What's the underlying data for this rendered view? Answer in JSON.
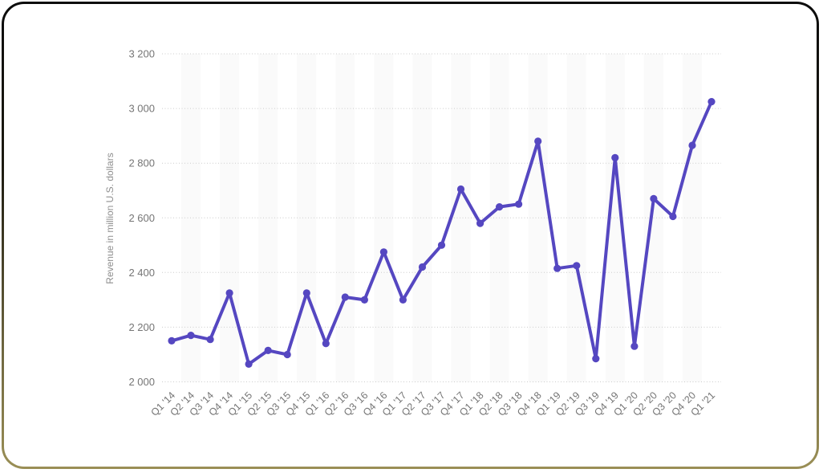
{
  "frame": {
    "background": "#ffffff",
    "border_gradient_top": "#0c0c0c",
    "border_gradient_bottom": "#9a8f56"
  },
  "chart_data": {
    "type": "line",
    "title": "",
    "xlabel": "",
    "ylabel": "Revenue in million U.S. dollars",
    "legend": "none",
    "grid": "horizontal-dotted",
    "plot_bands": "alternating-column-stripes",
    "ylim": [
      2000,
      3200
    ],
    "ytick_values": [
      2000,
      2200,
      2400,
      2600,
      2800,
      3000,
      3200
    ],
    "ytick_labels": [
      "2 000",
      "2 200",
      "2 400",
      "2 600",
      "2 800",
      "3 000",
      "3 200"
    ],
    "categories": [
      "Q1 '14",
      "Q2 '14",
      "Q3 '14",
      "Q4 '14",
      "Q1 '15",
      "Q2 '15",
      "Q3 '15",
      "Q4 '15",
      "Q1 '16",
      "Q2 '16",
      "Q3 '16",
      "Q4 '16",
      "Q1 '17",
      "Q2 '17",
      "Q3 '17",
      "Q4 '17",
      "Q1 '18",
      "Q2 '18",
      "Q3 '18",
      "Q4 '18",
      "Q1 '19",
      "Q2 '19",
      "Q3 '19",
      "Q4 '19",
      "Q1 '20",
      "Q2 '20",
      "Q3 '20",
      "Q4 '20",
      "Q1 '21"
    ],
    "series": [
      {
        "name": "Revenue",
        "color": "#5547C1",
        "values": [
          2150,
          2170,
          2155,
          2325,
          2065,
          2115,
          2100,
          2325,
          2140,
          2310,
          2300,
          2475,
          2300,
          2420,
          2500,
          2705,
          2580,
          2640,
          2650,
          2880,
          2415,
          2425,
          2085,
          2820,
          2130,
          2670,
          2605,
          2865,
          3025
        ]
      }
    ]
  },
  "colors": {
    "line": "#5547C1",
    "marker": "#5547C1",
    "stripe": "#fafafa",
    "gridline": "#cccccc",
    "tick_text": "#757575",
    "axis_title_text": "#8f8f8f"
  }
}
